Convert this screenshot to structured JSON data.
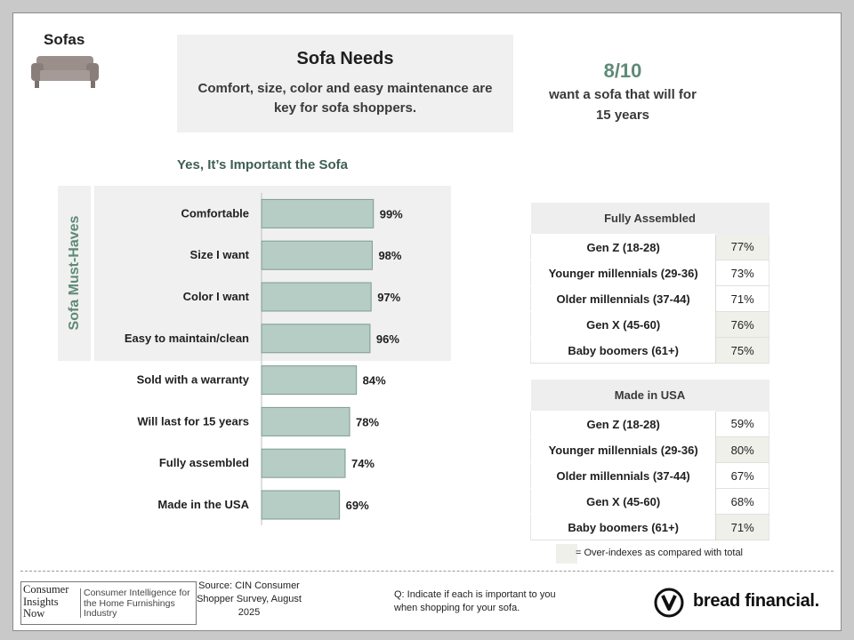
{
  "page": {
    "section_label": "Sofas",
    "header_title": "Sofa Needs",
    "header_subtitle": "Comfort, size, color and easy maintenance are key for sofa shoppers.",
    "stat_value": "8/10",
    "stat_text": "want a sofa that will for 15 years",
    "chart_title": "Yes, It’s Important the Sofa",
    "must_have_label": "Sofa Must-Haves",
    "legend_text": "= Over-indexes as compared with total",
    "source_text": "Source: CIN Consumer Shopper Survey, August 2025",
    "question_text": "Q:  Indicate if each is important to you when shopping for your sofa.",
    "cin_logo_left": "Consumer Insights Now",
    "cin_logo_right": "Consumer Intelligence for the Home Furnishings Industry",
    "bread_logo_text": "bread financial."
  },
  "colors": {
    "bar_fill": "#b5cdc4",
    "bar_stroke": "#7f9b90",
    "accent_green": "#5f8a76",
    "highlight": "#eff0e9"
  },
  "chart_data": {
    "type": "bar",
    "orientation": "horizontal",
    "title": "Yes, It’s Important the Sofa",
    "categories": [
      "Comfortable",
      "Size I want",
      "Color I want",
      "Easy to maintain/clean",
      "Sold with a warranty",
      "Will last for 15 years",
      "Fully assembled",
      "Made in the USA"
    ],
    "values": [
      99,
      98,
      97,
      96,
      84,
      78,
      74,
      69
    ],
    "value_labels": [
      "99%",
      "98%",
      "97%",
      "96%",
      "84%",
      "78%",
      "74%",
      "69%"
    ],
    "xlim": [
      0,
      100
    ],
    "must_have_group_count": 4
  },
  "tables": [
    {
      "title": "Fully Assembled",
      "rows": [
        {
          "label": "Gen Z (18-28)",
          "value": "77%",
          "highlight": true
        },
        {
          "label": "Younger millennials (29-36)",
          "value": "73%",
          "highlight": false
        },
        {
          "label": "Older millennials (37-44)",
          "value": "71%",
          "highlight": false
        },
        {
          "label": "Gen X (45-60)",
          "value": "76%",
          "highlight": true
        },
        {
          "label": "Baby boomers (61+)",
          "value": "75%",
          "highlight": true
        }
      ]
    },
    {
      "title": "Made in USA",
      "rows": [
        {
          "label": "Gen Z (18-28)",
          "value": "59%",
          "highlight": false
        },
        {
          "label": "Younger millennials (29-36)",
          "value": "80%",
          "highlight": true
        },
        {
          "label": "Older millennials (37-44)",
          "value": "67%",
          "highlight": false
        },
        {
          "label": "Gen X (45-60)",
          "value": "68%",
          "highlight": false
        },
        {
          "label": "Baby boomers (61+)",
          "value": "71%",
          "highlight": true
        }
      ]
    }
  ]
}
